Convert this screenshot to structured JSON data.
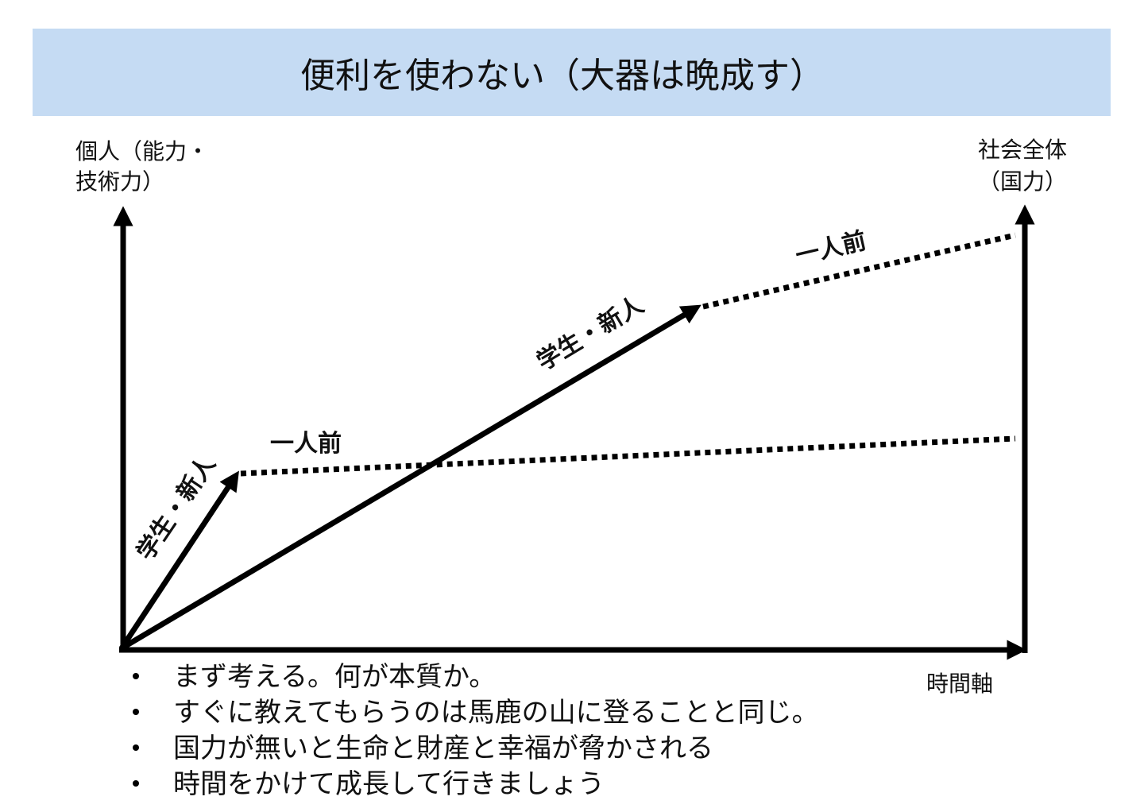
{
  "header": {
    "title": "便利を使わない（大器は晩成す）"
  },
  "diagram": {
    "left_axis_label": [
      "個人（能力・",
      "技術力）"
    ],
    "right_axis_label": [
      "社会全体",
      "（国力）"
    ],
    "x_axis_label": "時間軸",
    "paths": [
      {
        "early": "学生・新人",
        "mature": "一人前"
      },
      {
        "early": "学生・新人",
        "mature": "一人前"
      }
    ]
  },
  "bullets": [
    "まず考える。何が本質か。",
    "すぐに教えてもらうのは馬鹿の山に登ることと同じ。",
    "国力が無いと生命と財産と幸福が脅かされる",
    "時間をかけて成長して行きましょう"
  ]
}
